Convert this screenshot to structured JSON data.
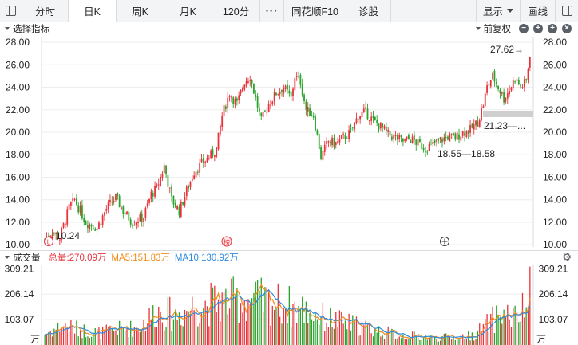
{
  "toolbar": {
    "tabs": [
      {
        "label": "分时",
        "active": false
      },
      {
        "label": "日K",
        "active": true
      },
      {
        "label": "周K",
        "active": false
      },
      {
        "label": "月K",
        "active": false
      },
      {
        "label": "120分",
        "active": false
      },
      {
        "label": "···",
        "active": false
      },
      {
        "label": "同花顺F10",
        "active": false
      },
      {
        "label": "诊股",
        "active": false
      }
    ],
    "display_label": "显示",
    "draw_label": "画线"
  },
  "indicator_bar": {
    "select_label": "选择指标",
    "adjust_label": "前复权"
  },
  "volume_bar": {
    "title": "成交量",
    "total": "总量:270.09万",
    "ma5": "MA5:151.83万",
    "ma10": "MA10:130.92万"
  },
  "colors": {
    "up": "#e8333b",
    "down": "#29a329",
    "ma5": "#f08c1a",
    "ma10": "#2f8be0",
    "toolbar_bg": "#f3f4f6",
    "grid": "#eeeeee"
  },
  "chart_data": {
    "type": "candlestick",
    "price_axis": {
      "ylim": [
        9.8,
        28.5
      ],
      "ticks": [
        "28.00",
        "26.00",
        "24.00",
        "22.00",
        "20.00",
        "18.00",
        "16.00",
        "14.00",
        "12.00",
        "10.00"
      ]
    },
    "volume_axis": {
      "ylim": [
        0,
        320
      ],
      "ticks": [
        "309.21",
        "206.14",
        "103.07"
      ],
      "unit": "万"
    },
    "annotations": {
      "low_start": "←10.24",
      "high_end": "27.62→",
      "mid_low": "18.55—18.58",
      "gap": "21.23—..."
    },
    "marker_label": "榜",
    "price_anchors": [
      [
        0,
        10.5
      ],
      [
        4,
        11.2
      ],
      [
        8,
        10.6
      ],
      [
        13,
        13.3
      ],
      [
        16,
        14.0
      ],
      [
        22,
        12.0
      ],
      [
        28,
        11.5
      ],
      [
        33,
        13.2
      ],
      [
        38,
        14.2
      ],
      [
        42,
        13.0
      ],
      [
        47,
        12.0
      ],
      [
        53,
        12.5
      ],
      [
        57,
        14.5
      ],
      [
        60,
        15.0
      ],
      [
        64,
        17.0
      ],
      [
        68,
        14.0
      ],
      [
        72,
        13.0
      ],
      [
        76,
        14.8
      ],
      [
        80,
        16.5
      ],
      [
        84,
        17.2
      ],
      [
        88,
        17.8
      ],
      [
        92,
        18.5
      ],
      [
        95,
        21.5
      ],
      [
        99,
        23.5
      ],
      [
        103,
        22.5
      ],
      [
        107,
        24.5
      ],
      [
        110,
        25.0
      ],
      [
        113,
        23.0
      ],
      [
        116,
        21.0
      ],
      [
        120,
        22.5
      ],
      [
        124,
        23.5
      ],
      [
        128,
        24.0
      ],
      [
        132,
        23.0
      ],
      [
        134,
        25.0
      ],
      [
        137,
        24.5
      ],
      [
        140,
        22.0
      ],
      [
        144,
        21.5
      ],
      [
        148,
        17.8
      ],
      [
        152,
        19.2
      ],
      [
        156,
        19.0
      ],
      [
        160,
        19.5
      ],
      [
        164,
        20.0
      ],
      [
        168,
        21.5
      ],
      [
        172,
        21.8
      ],
      [
        176,
        21.0
      ],
      [
        180,
        20.5
      ],
      [
        184,
        19.8
      ],
      [
        188,
        19.5
      ],
      [
        192,
        19.2
      ],
      [
        196,
        19.4
      ],
      [
        200,
        19.0
      ],
      [
        204,
        18.6
      ],
      [
        208,
        18.9
      ],
      [
        212,
        19.3
      ],
      [
        216,
        19.6
      ],
      [
        220,
        19.5
      ],
      [
        224,
        20.0
      ],
      [
        228,
        20.2
      ],
      [
        232,
        20.9
      ],
      [
        235,
        22.5
      ],
      [
        237,
        24.0
      ],
      [
        240,
        25.0
      ],
      [
        243,
        24.0
      ],
      [
        246,
        23.0
      ],
      [
        249,
        23.8
      ],
      [
        252,
        24.8
      ],
      [
        255,
        24.0
      ],
      [
        258,
        24.5
      ],
      [
        260,
        27.0
      ]
    ],
    "volume_anchors": [
      [
        0,
        45
      ],
      [
        10,
        80
      ],
      [
        20,
        60
      ],
      [
        30,
        50
      ],
      [
        40,
        65
      ],
      [
        50,
        70
      ],
      [
        60,
        140
      ],
      [
        70,
        120
      ],
      [
        80,
        160
      ],
      [
        90,
        170
      ],
      [
        100,
        180
      ],
      [
        110,
        185
      ],
      [
        120,
        175
      ],
      [
        130,
        160
      ],
      [
        140,
        140
      ],
      [
        150,
        110
      ],
      [
        160,
        90
      ],
      [
        170,
        75
      ],
      [
        180,
        55
      ],
      [
        190,
        40
      ],
      [
        200,
        35
      ],
      [
        210,
        30
      ],
      [
        220,
        32
      ],
      [
        230,
        40
      ],
      [
        238,
        90
      ],
      [
        245,
        130
      ],
      [
        252,
        110
      ],
      [
        258,
        150
      ],
      [
        260,
        260
      ]
    ]
  }
}
